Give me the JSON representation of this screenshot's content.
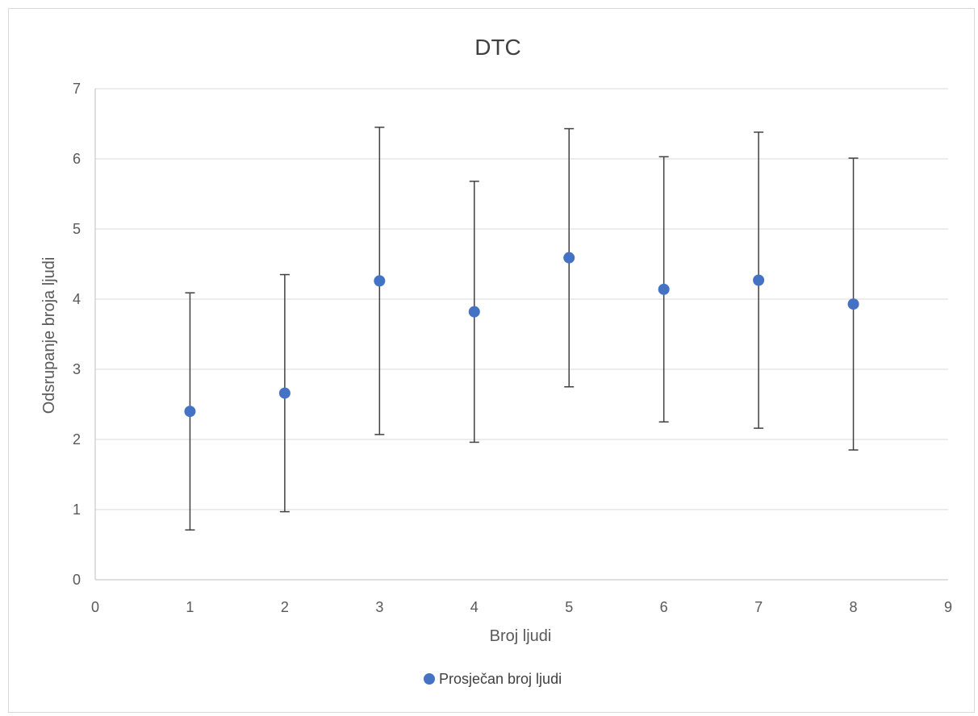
{
  "chart_data": {
    "type": "scatter",
    "title": "DTC",
    "xlabel": "Broj ljudi",
    "ylabel": "Odsrupanje broja ljudi",
    "xlim": [
      0,
      9
    ],
    "ylim": [
      0,
      7
    ],
    "x_ticks": [
      "0",
      "1",
      "2",
      "3",
      "4",
      "5",
      "6",
      "7",
      "8",
      "9"
    ],
    "y_ticks": [
      "0",
      "1",
      "2",
      "3",
      "4",
      "5",
      "6",
      "7"
    ],
    "grid": "horizontal",
    "legend_position": "bottom",
    "series": [
      {
        "name": "Prosječan broj ljudi",
        "color": "#4472c4",
        "x": [
          1,
          2,
          3,
          4,
          5,
          6,
          7,
          8
        ],
        "y": [
          2.4,
          2.66,
          4.26,
          3.82,
          4.59,
          4.14,
          4.27,
          3.93
        ],
        "error_low": [
          0.71,
          0.97,
          2.07,
          1.96,
          2.75,
          2.25,
          2.16,
          1.85
        ],
        "error_high": [
          4.09,
          4.35,
          6.45,
          5.68,
          6.43,
          6.03,
          6.38,
          6.01
        ]
      }
    ]
  }
}
